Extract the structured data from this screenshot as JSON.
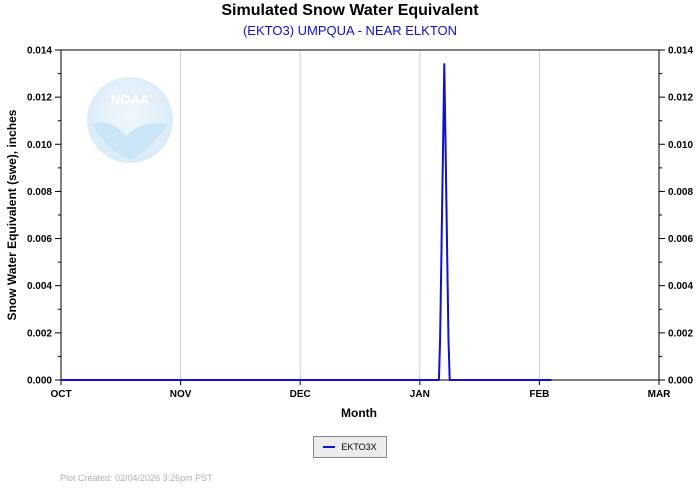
{
  "chart_data": {
    "type": "line",
    "title": "Simulated Snow Water Equivalent",
    "subtitle": "(EKTO3) UMPQUA - NEAR ELKTON",
    "xlabel": "Month",
    "ylabel": "Snow Water Equivalent (swe),  inches",
    "x_ticks": [
      "OCT",
      "NOV",
      "DEC",
      "JAN",
      "FEB",
      "MAR"
    ],
    "y_ticks": [
      "0.000",
      "0.002",
      "0.004",
      "0.006",
      "0.008",
      "0.010",
      "0.012",
      "0.014"
    ],
    "ylim": [
      0,
      0.014
    ],
    "xlim_months": [
      0,
      5
    ],
    "grid": "vertical only",
    "legend_position": "bottom-center",
    "series": [
      {
        "name": "EKTO3X",
        "color": "#1010d0",
        "points": [
          {
            "x": 0.0,
            "y": 0.0
          },
          {
            "x": 3.16,
            "y": 0.0
          },
          {
            "x": 3.17,
            "y": 0.0017
          },
          {
            "x": 3.18,
            "y": 0.005
          },
          {
            "x": 3.19,
            "y": 0.0084
          },
          {
            "x": 3.2,
            "y": 0.0117
          },
          {
            "x": 3.205,
            "y": 0.0134
          },
          {
            "x": 3.21,
            "y": 0.0117
          },
          {
            "x": 3.22,
            "y": 0.0084
          },
          {
            "x": 3.23,
            "y": 0.005
          },
          {
            "x": 3.24,
            "y": 0.0017
          },
          {
            "x": 3.25,
            "y": 0.0
          },
          {
            "x": 4.1,
            "y": 0.0
          }
        ]
      }
    ]
  },
  "legend": {
    "label": "EKTO3X",
    "color": "#1010d0"
  },
  "credit": "Plot Created: 02/04/2026 3:26pm PST",
  "logo": {
    "text": "NOAA"
  }
}
